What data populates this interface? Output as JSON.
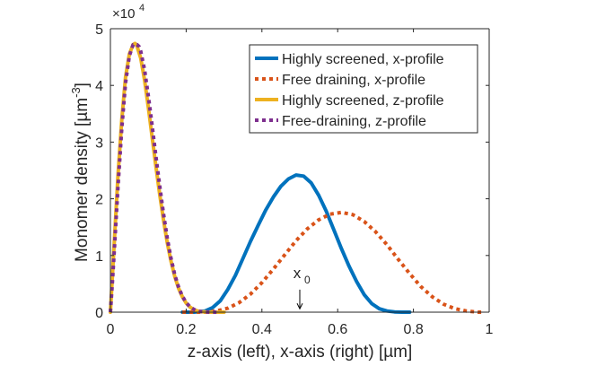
{
  "chart_data": {
    "type": "line",
    "xlabel": "z-axis (left), x-axis (right)  [µm]",
    "ylabel": "Monomer density [µm",
    "ylabel_exponent": "-3",
    "ylabel_tail": "]",
    "xlim": [
      0,
      1
    ],
    "ylim": [
      0,
      50000
    ],
    "x_ticks": [
      0,
      0.2,
      0.4,
      0.6,
      0.8,
      1
    ],
    "x_tick_labels": [
      "0",
      "0.2",
      "0.4",
      "0.6",
      "0.8",
      "1"
    ],
    "y_ticks": [
      0,
      10000,
      20000,
      30000,
      40000,
      50000
    ],
    "y_tick_labels": [
      "0",
      "1",
      "2",
      "3",
      "4",
      "5"
    ],
    "y_multiplier": {
      "base": "×10",
      "exponent": "4"
    },
    "grid": false,
    "legend_location": "top-right",
    "annotation": {
      "text": "x",
      "subscript": "0",
      "x": 0.5,
      "y": 3500,
      "arrow_to_y": 600
    },
    "series": [
      {
        "name": "Highly screened, x-profile",
        "color": "#0072BD",
        "style": "solid",
        "x": [
          0.19,
          0.22,
          0.25,
          0.27,
          0.29,
          0.31,
          0.33,
          0.35,
          0.37,
          0.39,
          0.41,
          0.43,
          0.45,
          0.47,
          0.49,
          0.51,
          0.53,
          0.55,
          0.57,
          0.59,
          0.61,
          0.63,
          0.65,
          0.67,
          0.69,
          0.71,
          0.73,
          0.75,
          0.77,
          0.79
        ],
        "y": [
          0,
          0,
          200,
          800,
          2000,
          4000,
          6500,
          9500,
          12500,
          15300,
          18000,
          20300,
          22200,
          23500,
          24200,
          24000,
          22800,
          20600,
          17800,
          14500,
          11200,
          8100,
          5400,
          3100,
          1500,
          600,
          200,
          50,
          0,
          0
        ]
      },
      {
        "name": "Free draining, x-profile",
        "color": "#D95319",
        "style": "dotted",
        "x": [
          0.19,
          0.25,
          0.28,
          0.31,
          0.34,
          0.37,
          0.4,
          0.43,
          0.46,
          0.49,
          0.52,
          0.55,
          0.58,
          0.61,
          0.64,
          0.67,
          0.7,
          0.73,
          0.76,
          0.79,
          0.82,
          0.85,
          0.88,
          0.91,
          0.94,
          0.97,
          0.98
        ],
        "y": [
          0,
          0,
          200,
          700,
          1700,
          3200,
          5200,
          7600,
          10100,
          12600,
          14700,
          16300,
          17300,
          17600,
          17200,
          16000,
          14200,
          11900,
          9300,
          6800,
          4500,
          2700,
          1400,
          600,
          200,
          0,
          0
        ]
      },
      {
        "name": "Highly screened, z-profile",
        "color": "#EDB120",
        "style": "solid",
        "x": [
          0.0,
          0.005,
          0.01,
          0.02,
          0.03,
          0.04,
          0.05,
          0.06,
          0.065,
          0.07,
          0.08,
          0.09,
          0.1,
          0.11,
          0.12,
          0.13,
          0.14,
          0.15,
          0.16,
          0.17,
          0.18,
          0.19,
          0.2,
          0.21,
          0.22,
          0.23,
          0.24,
          0.26,
          0.28,
          0.3
        ],
        "y": [
          0,
          6000,
          12000,
          24000,
          34000,
          41500,
          45500,
          47200,
          47400,
          47000,
          44800,
          41000,
          36200,
          31000,
          25800,
          20800,
          16300,
          12300,
          9000,
          6300,
          4200,
          2700,
          1600,
          900,
          450,
          200,
          80,
          0,
          0,
          0
        ]
      },
      {
        "name": "Free-draining, z-profile",
        "color": "#7E2F8E",
        "style": "dotted",
        "x": [
          0.0,
          0.005,
          0.01,
          0.02,
          0.03,
          0.04,
          0.05,
          0.06,
          0.07,
          0.075,
          0.08,
          0.09,
          0.1,
          0.11,
          0.12,
          0.13,
          0.14,
          0.15,
          0.16,
          0.17,
          0.18,
          0.19,
          0.2,
          0.21,
          0.22,
          0.23,
          0.24,
          0.26,
          0.28
        ],
        "y": [
          0,
          5000,
          10500,
          22000,
          32500,
          40500,
          45200,
          47200,
          47200,
          46900,
          46000,
          42800,
          38200,
          33000,
          27600,
          22300,
          17400,
          13100,
          9500,
          6600,
          4400,
          2800,
          1700,
          950,
          500,
          220,
          90,
          0,
          0
        ]
      }
    ]
  }
}
